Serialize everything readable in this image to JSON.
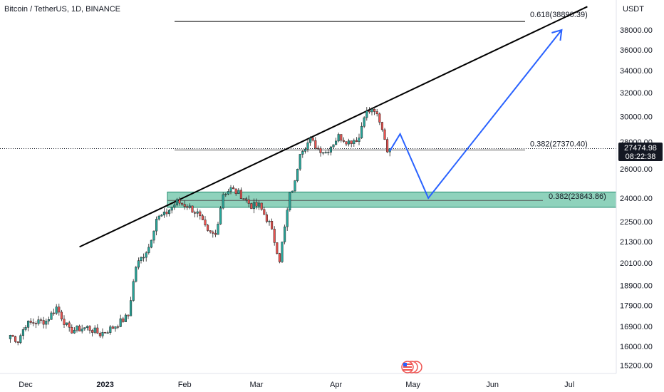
{
  "header": {
    "title": "Bitcoin / TetherUS, 1D, BINANCE"
  },
  "price_axis": {
    "currency": "USDT",
    "ticks": [
      "38000.00",
      "36000.00",
      "34000.00",
      "32000.00",
      "30000.00",
      "28000.00",
      "26000.00",
      "24000.00",
      "22500.00",
      "21300.00",
      "20100.00",
      "18900.00",
      "17900.00",
      "16900.00",
      "16000.00",
      "15200.00"
    ],
    "current_price": "27474.98",
    "countdown": "08:22:38",
    "price_label_color": "#131722"
  },
  "time_axis": {
    "ticks": [
      "Dec",
      "2023",
      "Feb",
      "Mar",
      "Apr",
      "May",
      "Jun",
      "Jul"
    ]
  },
  "annotations": {
    "fib_top": "0.618(38890.39)",
    "fib_mid": "0.382(27370.40)",
    "fib_zone": "0.382(23843.86)"
  },
  "colors": {
    "up": "#26a69a",
    "down": "#ef5350",
    "projection": "#2962ff",
    "zone_fill": "#5fbfa0",
    "trendline": "#000000"
  },
  "chart_data": {
    "type": "candlestick",
    "symbol": "Bitcoin / TetherUS",
    "interval": "1D",
    "exchange": "BINANCE",
    "scale": "log",
    "y_unit": "USDT",
    "ylim": [
      15000,
      40500
    ],
    "x_ticks": [
      "Dec",
      "2023",
      "Feb",
      "Mar",
      "Apr",
      "May",
      "Jun",
      "Jul"
    ],
    "last_price": 27474.98,
    "countdown": "08:22:38",
    "fib_levels": [
      {
        "label": "0.618(38890.39)",
        "value": 38890.39
      },
      {
        "label": "0.382(27370.40)",
        "value": 27370.4
      },
      {
        "label": "0.382(23843.86)",
        "value": 23843.86
      }
    ],
    "support_zone": [
      23400,
      24400
    ],
    "close_path": [
      [
        "2022-11-25",
        16500
      ],
      [
        "2022-11-28",
        16250
      ],
      [
        "2022-12-01",
        17000
      ],
      [
        "2022-12-05",
        17100
      ],
      [
        "2022-12-09",
        17150
      ],
      [
        "2022-12-13",
        17800
      ],
      [
        "2022-12-15",
        17350
      ],
      [
        "2022-12-18",
        16700
      ],
      [
        "2022-12-25",
        16850
      ],
      [
        "2022-12-30",
        16550
      ],
      [
        "2023-01-04",
        16850
      ],
      [
        "2023-01-08",
        17200
      ],
      [
        "2023-01-10",
        17400
      ],
      [
        "2023-01-13",
        19900
      ],
      [
        "2023-01-18",
        21000
      ],
      [
        "2023-01-21",
        22700
      ],
      [
        "2023-01-24",
        22900
      ],
      [
        "2023-01-29",
        23750
      ],
      [
        "2023-02-02",
        23500
      ],
      [
        "2023-02-06",
        23000
      ],
      [
        "2023-02-10",
        21800
      ],
      [
        "2023-02-13",
        21700
      ],
      [
        "2023-02-16",
        24300
      ],
      [
        "2023-02-19",
        24600
      ],
      [
        "2023-02-23",
        24200
      ],
      [
        "2023-02-27",
        23500
      ],
      [
        "2023-03-02",
        23500
      ],
      [
        "2023-03-06",
        22400
      ],
      [
        "2023-03-10",
        20300
      ],
      [
        "2023-03-12",
        22100
      ],
      [
        "2023-03-14",
        24200
      ],
      [
        "2023-03-16",
        25000
      ],
      [
        "2023-03-18",
        27300
      ],
      [
        "2023-03-22",
        28100
      ],
      [
        "2023-03-25",
        27500
      ],
      [
        "2023-03-28",
        27200
      ],
      [
        "2023-04-02",
        28400
      ],
      [
        "2023-04-06",
        28000
      ],
      [
        "2023-04-10",
        28300
      ],
      [
        "2023-04-12",
        30200
      ],
      [
        "2023-04-14",
        30400
      ],
      [
        "2023-04-16",
        30500
      ],
      [
        "2023-04-18",
        29400
      ],
      [
        "2023-04-20",
        28300
      ],
      [
        "2023-04-21",
        27300
      ],
      [
        "2023-04-22",
        27475
      ]
    ],
    "trendline": [
      [
        "2022-12-22",
        21000
      ],
      [
        "2023-07-08",
        40500
      ]
    ],
    "projection_path": [
      [
        "2023-04-22",
        27300
      ],
      [
        "2023-04-26",
        28600
      ],
      [
        "2023-05-07",
        24000
      ],
      [
        "2023-06-28",
        38000
      ]
    ]
  }
}
